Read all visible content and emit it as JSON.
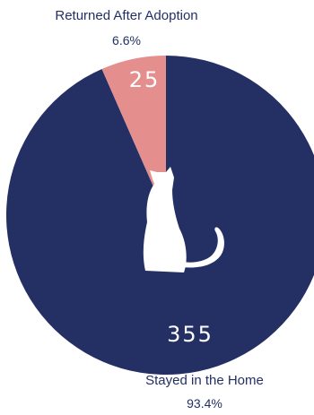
{
  "chart_data": {
    "type": "pie",
    "slices": [
      {
        "name": "Stayed in the Home",
        "value": 355,
        "value_label": "355",
        "percent_label": "93.4%",
        "color": "#243064"
      },
      {
        "name": "Returned After Adoption",
        "value": 25,
        "value_label": "25",
        "percent_label": "6.6%",
        "color": "#e48e8e"
      }
    ],
    "center_icon": "cat-silhouette-icon",
    "value_label_color": "#ffffff",
    "label_color": "#243064"
  }
}
